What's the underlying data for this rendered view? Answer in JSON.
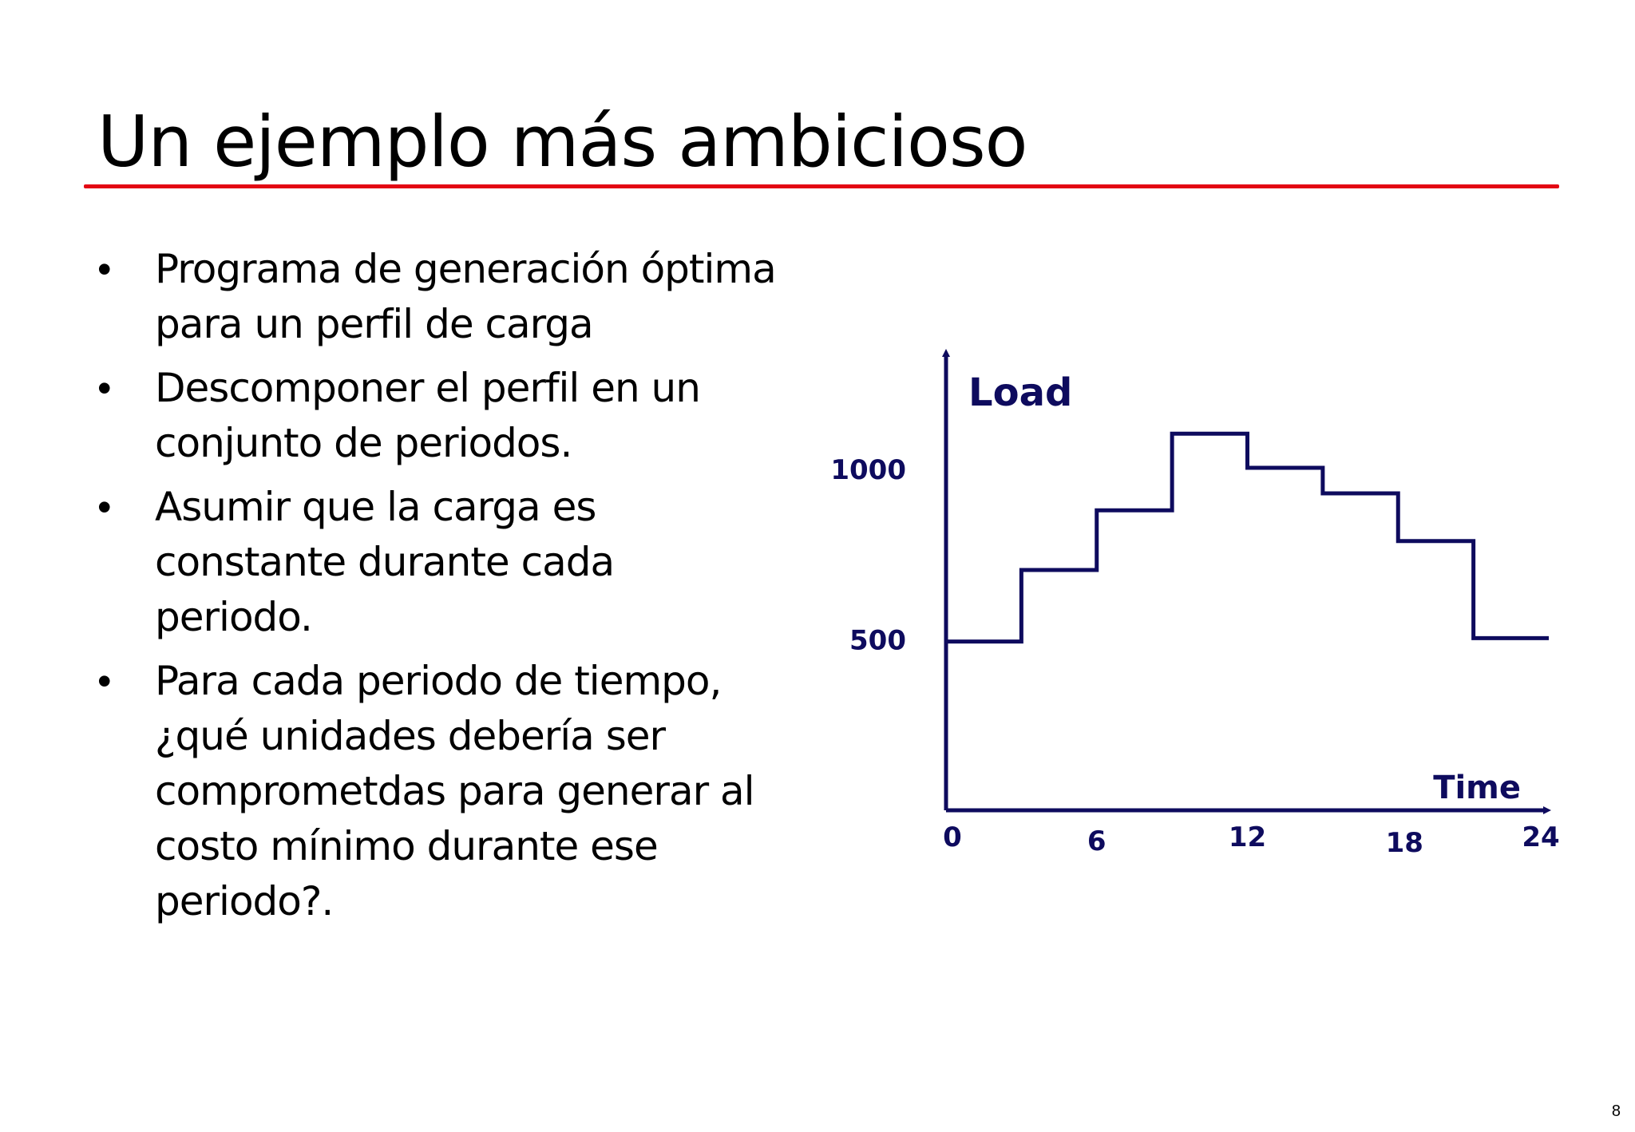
{
  "slide": {
    "title": "Un ejemplo más ambicioso",
    "page_number": "8",
    "accent_color": "#e30613",
    "bullets": [
      {
        "text": "Programa de generación óptima\npara un perfil de carga"
      },
      {
        "text": "Descomponer el perfil en un\nconjunto de periodos."
      },
      {
        "text": "Asumir que la carga es\nconstante durante cada\nperiodo."
      },
      {
        "text": "Para cada periodo de tiempo,\n¿qué unidades debería ser\ncomprometdas para generar al\ncosto mínimo durante ese\nperiodo?."
      }
    ],
    "bullet_symbol": "•"
  },
  "chart_data": {
    "type": "line",
    "step": true,
    "title": "",
    "xlabel": "Time",
    "ylabel": "Load",
    "color": "#0e0b5e",
    "xlim": [
      0,
      24
    ],
    "ylim": [
      0,
      1300
    ],
    "x_ticks": [
      0,
      6,
      12,
      18,
      24
    ],
    "y_ticks": [
      500,
      1000
    ],
    "x_tick_labels": [
      "0",
      "6",
      "12",
      "18",
      "24"
    ],
    "y_tick_labels": [
      "500",
      "1000"
    ],
    "grid": false,
    "series": [
      {
        "x_start": [
          0,
          3,
          6,
          9,
          12,
          15,
          18,
          21
        ],
        "x_end": [
          3,
          6,
          9,
          12,
          15,
          18,
          21,
          24
        ],
        "values": [
          495,
          705,
          880,
          1105,
          1005,
          930,
          790,
          505
        ]
      }
    ]
  }
}
